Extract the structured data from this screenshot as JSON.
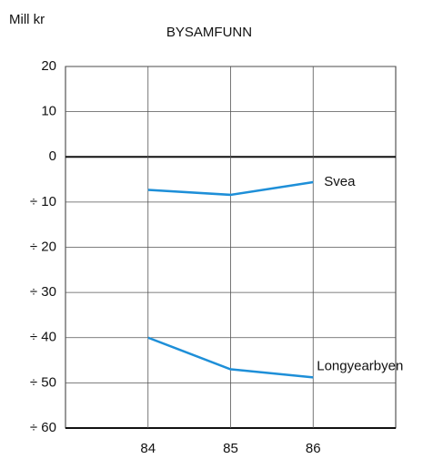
{
  "chart_data": {
    "type": "line",
    "title": "BYSAMFUNN",
    "y_label": "Mill kr",
    "x": [
      84,
      85,
      86
    ],
    "xlim": [
      83,
      87
    ],
    "xticks": [
      84,
      85,
      86
    ],
    "ylim": [
      -60,
      20
    ],
    "yticks": [
      {
        "value": -60,
        "label": "÷ 60"
      },
      {
        "value": -50,
        "label": "÷ 50"
      },
      {
        "value": -40,
        "label": "÷ 40"
      },
      {
        "value": -30,
        "label": "÷ 30"
      },
      {
        "value": -20,
        "label": "÷ 20"
      },
      {
        "value": -10,
        "label": "÷ 10"
      },
      0,
      10,
      20
    ],
    "grid": true,
    "series": [
      {
        "name": "Svea",
        "color": "#1e8fd8",
        "values": [
          -7.3,
          -8.4,
          -5.6
        ]
      },
      {
        "name": "Longyearbyen",
        "color": "#1e8fd8",
        "values": [
          -40,
          -47,
          -48.8
        ]
      }
    ]
  }
}
